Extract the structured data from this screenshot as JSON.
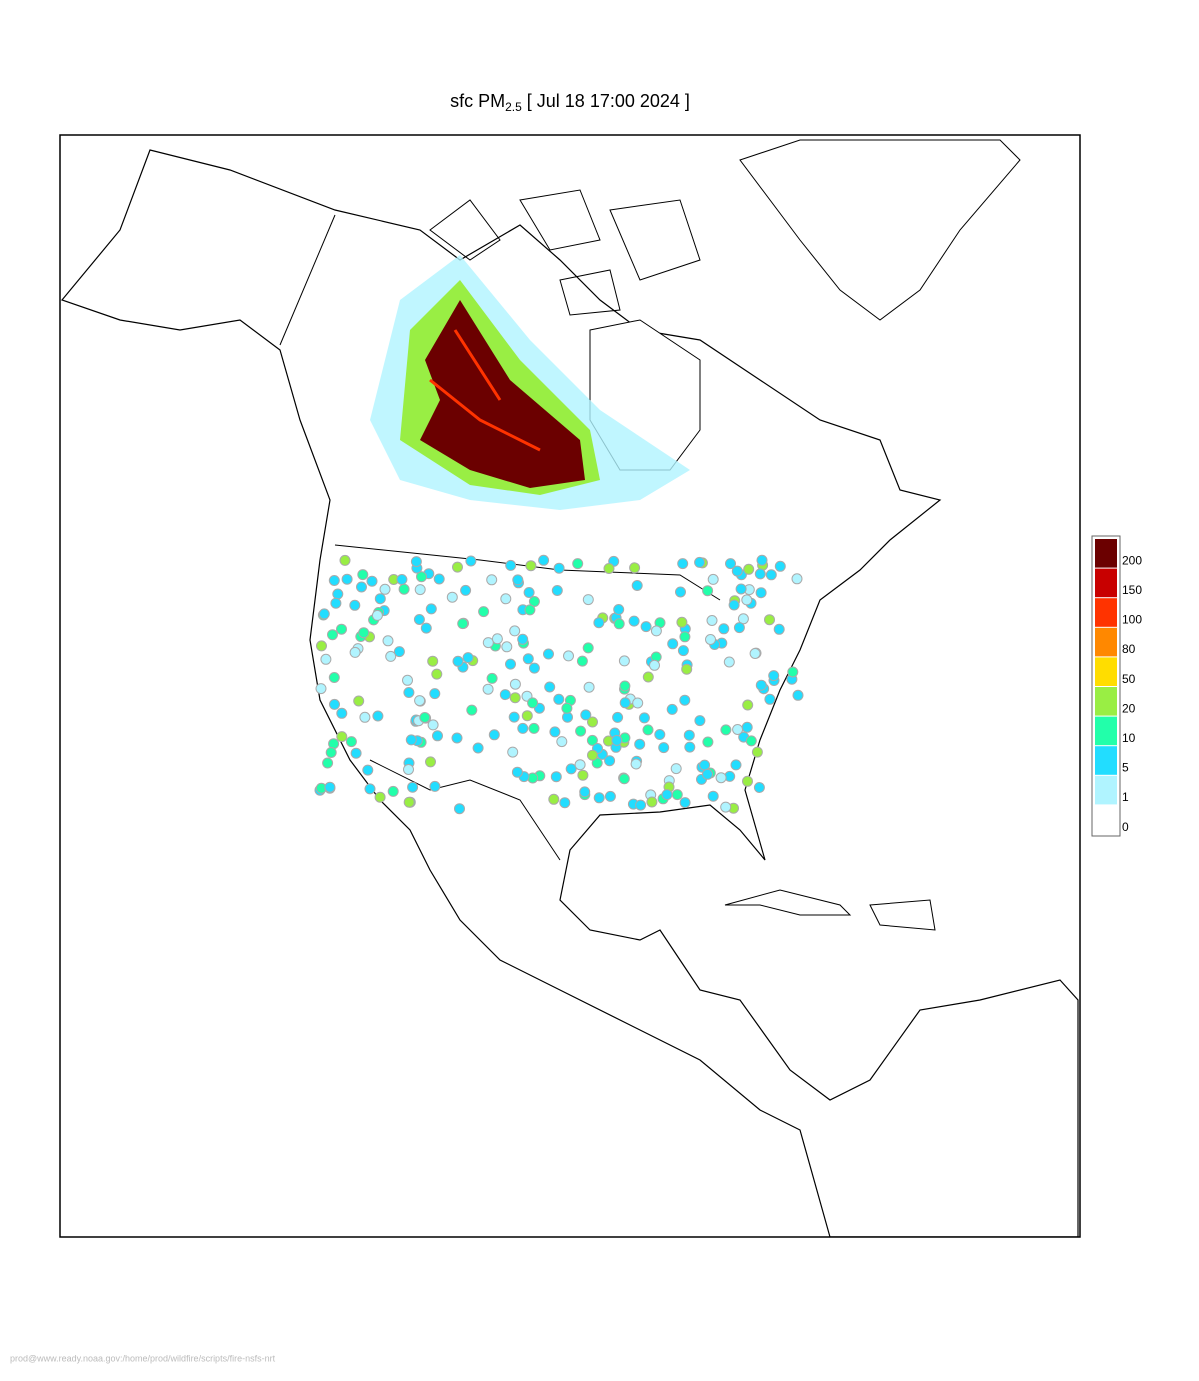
{
  "title": {
    "prefix": "sfc PM",
    "subscript": "2.5",
    "suffix": "[ Jul 18 17:00 2024 ]"
  },
  "legend": [
    {
      "label": 200,
      "color": "#6b0000"
    },
    {
      "label": 150,
      "color": "#c80000"
    },
    {
      "label": 100,
      "color": "#ff3300"
    },
    {
      "label": 80,
      "color": "#ff8800"
    },
    {
      "label": 50,
      "color": "#ffdd00"
    },
    {
      "label": 20,
      "color": "#99ee44"
    },
    {
      "label": 10,
      "color": "#22ffaa"
    },
    {
      "label": 5,
      "color": "#22ddff"
    },
    {
      "label": 1,
      "color": "#b0f4ff"
    },
    {
      "label": 0,
      "color": "#ffffff"
    }
  ],
  "footer": "prod@www.ready.noaa.gov:/home/prod/wildfire/scripts/fire-nsfs-nrt"
}
